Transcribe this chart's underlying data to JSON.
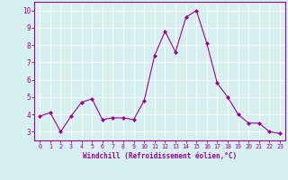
{
  "x": [
    0,
    1,
    2,
    3,
    4,
    5,
    6,
    7,
    8,
    9,
    10,
    11,
    12,
    13,
    14,
    15,
    16,
    17,
    18,
    19,
    20,
    21,
    22,
    23
  ],
  "y": [
    3.9,
    4.1,
    3.0,
    3.9,
    4.7,
    4.9,
    3.7,
    3.8,
    3.8,
    3.7,
    4.8,
    7.4,
    8.8,
    7.6,
    9.6,
    10.0,
    8.1,
    5.8,
    5.0,
    4.0,
    3.5,
    3.5,
    3.0,
    2.9
  ],
  "line_color": "#9b009b",
  "marker": "D",
  "marker_size": 2.0,
  "bg_color": "#d6f0f0",
  "grid_color": "#ffffff",
  "xlabel": "Windchill (Refroidissement éolien,°C)",
  "xlim": [
    -0.5,
    23.5
  ],
  "ylim": [
    2.5,
    10.5
  ],
  "xtick_labels": [
    "0",
    "1",
    "2",
    "3",
    "4",
    "5",
    "6",
    "7",
    "8",
    "9",
    "10",
    "11",
    "12",
    "13",
    "14",
    "15",
    "16",
    "17",
    "18",
    "19",
    "20",
    "21",
    "22",
    "23"
  ],
  "ytick_values": [
    3,
    4,
    5,
    6,
    7,
    8,
    9,
    10
  ],
  "line_width": 0.8,
  "tick_color": "#9b009b",
  "spine_color": "#9b009b",
  "axis_label_color": "#9b009b",
  "xlabel_fontsize": 5.5,
  "xtick_fontsize": 4.8,
  "ytick_fontsize": 5.5
}
